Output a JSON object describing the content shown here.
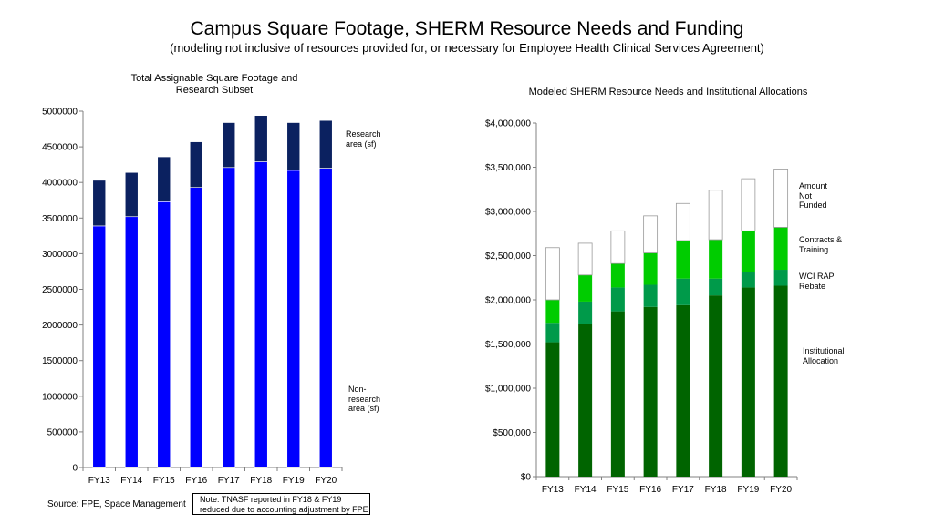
{
  "title": "Campus Square Footage, SHERM Resource Needs and Funding",
  "subtitle": "(modeling not inclusive of resources provided for, or necessary for Employee Health Clinical Services Agreement)",
  "source": "Source: FPE, Space Management",
  "note": "Note: TNASF reported in FY18 & FY19 reduced due to accounting adjustment by FPE",
  "chart_data": [
    {
      "type": "bar",
      "stacked": true,
      "title": "Total Assignable Square Footage and Research Subset",
      "categories": [
        "FY13",
        "FY14",
        "FY15",
        "FY16",
        "FY17",
        "FY18",
        "FY19",
        "FY20"
      ],
      "ylim": [
        0,
        5000000
      ],
      "yticks": [
        "0",
        "500000",
        "1000000",
        "1500000",
        "2000000",
        "2500000",
        "3000000",
        "3500000",
        "4000000",
        "4500000",
        "5000000"
      ],
      "series": [
        {
          "name": "Non-research area (sf)",
          "color": "#0000ff",
          "values": [
            3390000,
            3520000,
            3730000,
            3930000,
            4210000,
            4290000,
            4170000,
            4200000
          ]
        },
        {
          "name": "Research area (sf)",
          "color": "#0b2160",
          "values": [
            640000,
            620000,
            630000,
            640000,
            630000,
            650000,
            670000,
            670000
          ]
        }
      ],
      "annotations": [
        {
          "label": "Research area (sf)",
          "color": "#000000"
        },
        {
          "label": "Non-research area (sf)",
          "color": "#1f3fa0"
        }
      ],
      "grid": false
    },
    {
      "type": "bar",
      "stacked": true,
      "title": "Modeled SHERM Resource Needs and Institutional Allocations",
      "categories": [
        "FY13",
        "FY14",
        "FY15",
        "FY16",
        "FY17",
        "FY18",
        "FY19",
        "FY20"
      ],
      "ylim": [
        0,
        4000000
      ],
      "yticks": [
        "$0",
        "$500,000",
        "$1,000,000",
        "$1,500,000",
        "$2,000,000",
        "$2,500,000",
        "$3,000,000",
        "$3,500,000",
        "$4,000,000"
      ],
      "series": [
        {
          "name": "Institutional Allocation",
          "color": "#006400",
          "values": [
            1520000,
            1730000,
            1870000,
            1920000,
            1940000,
            2050000,
            2140000,
            2160000
          ]
        },
        {
          "name": "WCI RAP Rebate",
          "color": "#009a4a",
          "values": [
            220000,
            250000,
            270000,
            250000,
            300000,
            190000,
            170000,
            180000
          ]
        },
        {
          "name": "Contracts & Training",
          "color": "#00cc00",
          "values": [
            260000,
            300000,
            270000,
            360000,
            430000,
            440000,
            470000,
            480000
          ]
        },
        {
          "name": "Amount Not Funded",
          "color": "#ffffff",
          "values": [
            590000,
            360000,
            370000,
            420000,
            420000,
            560000,
            590000,
            660000
          ]
        }
      ],
      "annotations": [
        {
          "label": "Amount Not Funded",
          "color": "#808080"
        },
        {
          "label": "Contracts & Training",
          "color": "#00b000"
        },
        {
          "label": "WCI RAP Rebate",
          "color": "#1a9a3a"
        },
        {
          "label": "Institutional Allocation",
          "color": "#0a6a0a"
        }
      ],
      "grid": false
    }
  ]
}
